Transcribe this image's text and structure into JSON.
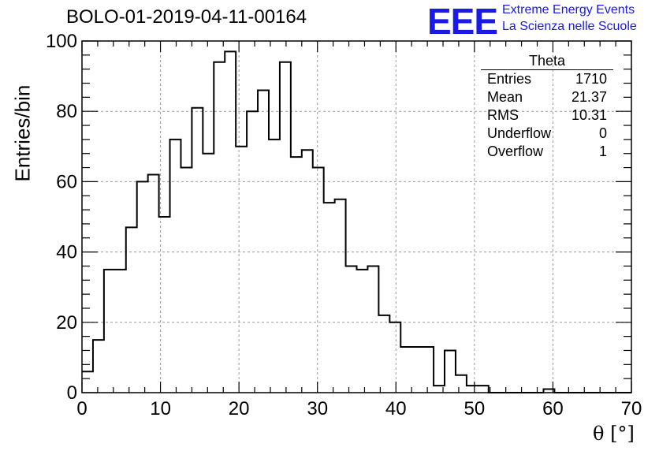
{
  "title": "BOLO-01-2019-04-11-00164",
  "logo": {
    "mark": "EEE",
    "line1": "Extreme Energy Events",
    "line2": "La Scienza nelle Scuole",
    "color": "#1a1ae6"
  },
  "stats_box": {
    "title": "Theta",
    "rows": [
      {
        "label": "Entries",
        "value": "1710"
      },
      {
        "label": "Mean",
        "value": "21.37"
      },
      {
        "label": "RMS",
        "value": "10.31"
      },
      {
        "label": "Underflow",
        "value": "0"
      },
      {
        "label": "Overflow",
        "value": "1"
      }
    ]
  },
  "chart_data": {
    "type": "bar",
    "style": "step-histogram",
    "title": "BOLO-01-2019-04-11-00164",
    "xlabel": "θ [°]",
    "ylabel": "Entries/bin",
    "xlim": [
      0,
      70
    ],
    "ylim": [
      0,
      100
    ],
    "grid": true,
    "xticks": [
      "0",
      "10",
      "20",
      "30",
      "40",
      "50",
      "60",
      "70"
    ],
    "yticks": [
      "0",
      "20",
      "40",
      "60",
      "80",
      "100"
    ],
    "bin_edges": [
      0,
      1.4,
      2.8,
      4.2,
      5.6,
      7,
      8.4,
      9.8,
      11.2,
      12.6,
      14,
      15.4,
      16.8,
      18.2,
      19.6,
      21,
      22.4,
      23.8,
      25.2,
      26.6,
      28,
      29.4,
      30.8,
      32.2,
      33.6,
      35,
      36.4,
      37.8,
      39.2,
      40.6,
      42,
      43.4,
      44.8,
      46.2,
      47.6,
      49,
      50.4,
      51.8,
      53.2,
      54.6,
      56,
      57.4,
      58.8,
      60.2,
      61.6,
      63,
      64.4,
      65.8,
      67.2,
      68.6,
      70
    ],
    "values": [
      6,
      15,
      35,
      35,
      47,
      60,
      62,
      50,
      72,
      64,
      81,
      68,
      94,
      97,
      70,
      80,
      86,
      72,
      94,
      67,
      69,
      64,
      54,
      55,
      36,
      35,
      36,
      22,
      20,
      13,
      13,
      13,
      2,
      12,
      5,
      2,
      2,
      0,
      0,
      0,
      0,
      0,
      1,
      0,
      0,
      0,
      0,
      0,
      0,
      0
    ],
    "line_color": "#000000",
    "grid_color": "#9a9a9a"
  }
}
